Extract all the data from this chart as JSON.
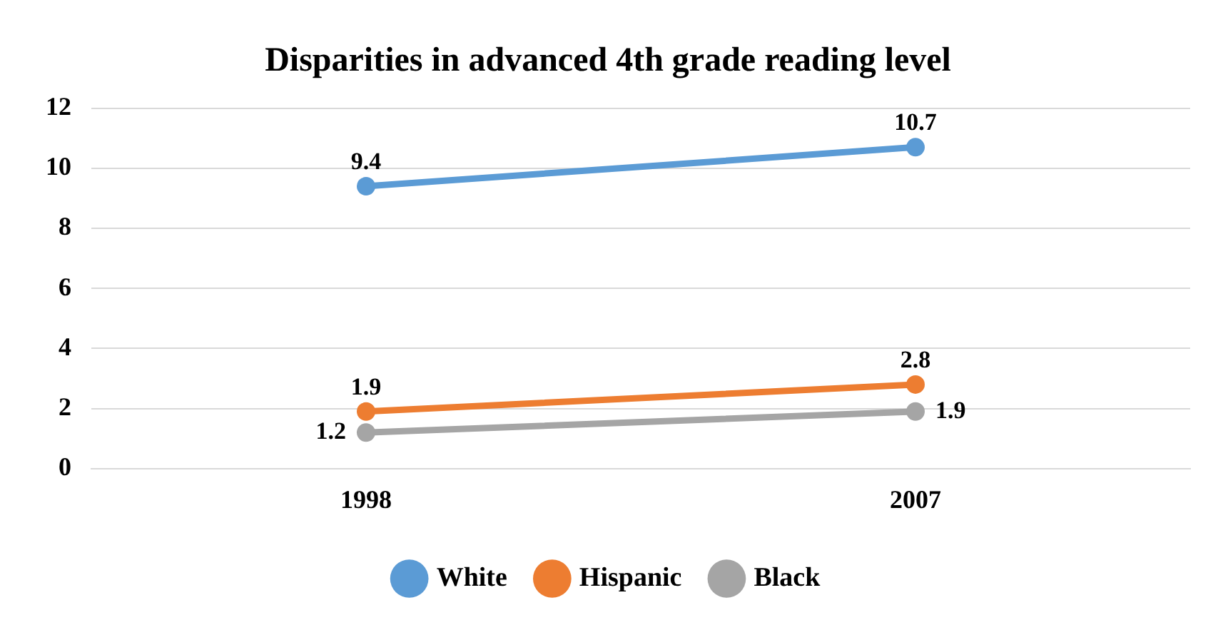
{
  "chart_data": {
    "type": "line",
    "title": "Disparities in advanced 4th grade reading level",
    "categories": [
      "1998",
      "2007"
    ],
    "series": [
      {
        "name": "White",
        "color": "#5b9bd5",
        "values": [
          9.4,
          10.7
        ]
      },
      {
        "name": "Hispanic",
        "color": "#ed7d31",
        "values": [
          1.9,
          2.8
        ]
      },
      {
        "name": "Black",
        "color": "#a5a5a5",
        "values": [
          1.2,
          1.9
        ]
      }
    ],
    "ylim": [
      0,
      12
    ],
    "yticks": [
      0,
      2,
      4,
      6,
      8,
      10,
      12
    ],
    "grid": "y",
    "legend": "bottom",
    "marker": "circle",
    "line_style": "solid",
    "data_labels": true
  }
}
